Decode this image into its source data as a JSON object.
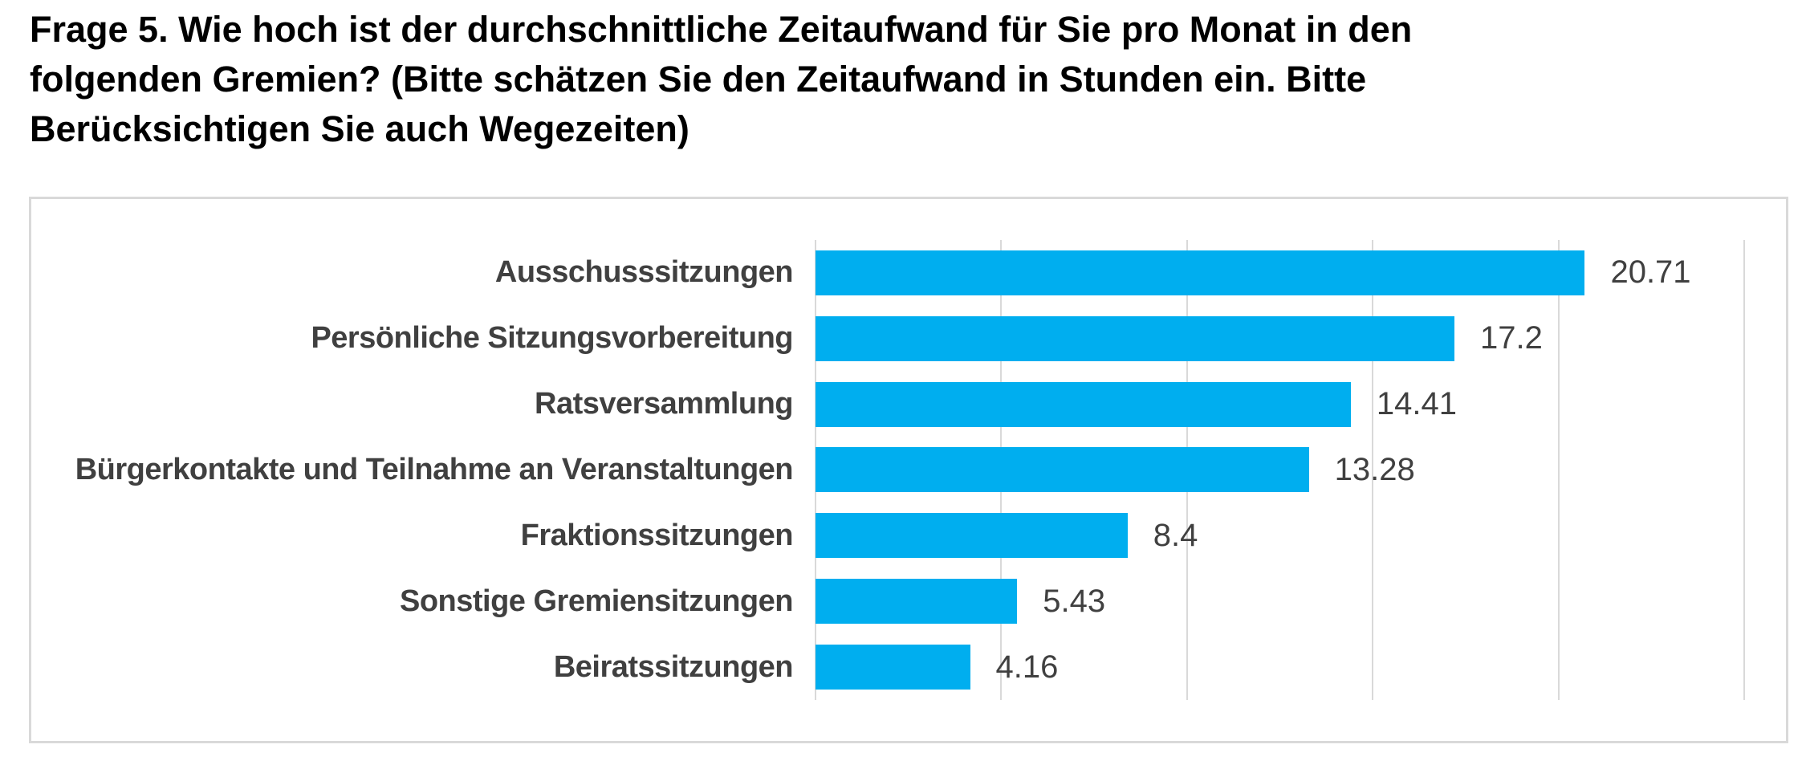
{
  "page": {
    "title_lines": [
      "Frage 5. Wie hoch ist der durchschnittliche Zeitaufwand für Sie pro Monat in den",
      "folgenden Gremien? (Bitte schätzen Sie den Zeitaufwand in Stunden ein. Bitte",
      "Berücksichtigen Sie auch Wegezeiten)"
    ]
  },
  "colors": {
    "bar": "#00AEEF",
    "grid": "#D9D9D9",
    "border": "#D9D9D9",
    "label": "#404040",
    "title": "#000000",
    "background": "#FFFFFF"
  },
  "chart_data": {
    "type": "bar",
    "orientation": "horizontal",
    "title": "Frage 5. Wie hoch ist der durchschnittliche Zeitaufwand für Sie pro Monat in den folgenden Gremien? (Bitte schätzen Sie den Zeitaufwand in Stunden ein. Bitte Berücksichtigen Sie auch Wegezeiten)",
    "categories": [
      "Ausschusssitzungen",
      "Persönliche Sitzungsvorbereitung",
      "Ratsversammlung",
      "Bürgerkontakte und Teilnahme an Veranstaltungen",
      "Fraktionssitzungen",
      "Sonstige Gremiensitzungen",
      "Beiratssitzungen"
    ],
    "values": [
      20.71,
      17.2,
      14.41,
      13.28,
      8.4,
      5.43,
      4.16
    ],
    "value_labels": [
      "20.71",
      "17.2",
      "14.41",
      "13.28",
      "8.4",
      "5.43",
      "4.16"
    ],
    "xlabel": "",
    "ylabel": "",
    "xlim": [
      0,
      25
    ],
    "gridlines_x": [
      0,
      5,
      10,
      15,
      20,
      25
    ],
    "grid": true,
    "legend": false,
    "data_labels": true
  }
}
